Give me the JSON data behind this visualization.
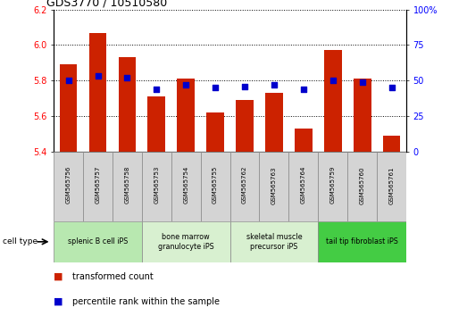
{
  "title": "GDS3770 / 10510580",
  "samples": [
    "GSM565756",
    "GSM565757",
    "GSM565758",
    "GSM565753",
    "GSM565754",
    "GSM565755",
    "GSM565762",
    "GSM565763",
    "GSM565764",
    "GSM565759",
    "GSM565760",
    "GSM565761"
  ],
  "bar_values": [
    5.89,
    6.07,
    5.93,
    5.71,
    5.81,
    5.62,
    5.69,
    5.73,
    5.53,
    5.97,
    5.81,
    5.49
  ],
  "percentile_values": [
    50,
    53,
    52,
    44,
    47,
    45,
    46,
    47,
    44,
    50,
    49,
    45
  ],
  "cell_type_labels": [
    "splenic B cell iPS",
    "bone marrow\ngranulocyte iPS",
    "skeletal muscle\nprecursor iPS",
    "tail tip fibroblast iPS"
  ],
  "cell_type_colors": [
    "#b8e8b0",
    "#d8f0d0",
    "#d8f0d0",
    "#44cc44"
  ],
  "cell_type_borders": [
    0,
    3,
    6,
    9,
    12
  ],
  "ylim_left": [
    5.4,
    6.2
  ],
  "ylim_right": [
    0,
    100
  ],
  "yticks_left": [
    5.4,
    5.6,
    5.8,
    6.0,
    6.2
  ],
  "yticks_right": [
    0,
    25,
    50,
    75,
    100
  ],
  "bar_color": "#cc2200",
  "dot_color": "#0000cc",
  "bar_width": 0.6,
  "sample_box_color": "#d4d4d4",
  "legend_bar_label": "transformed count",
  "legend_dot_label": "percentile rank within the sample",
  "cell_type_label": "cell type"
}
